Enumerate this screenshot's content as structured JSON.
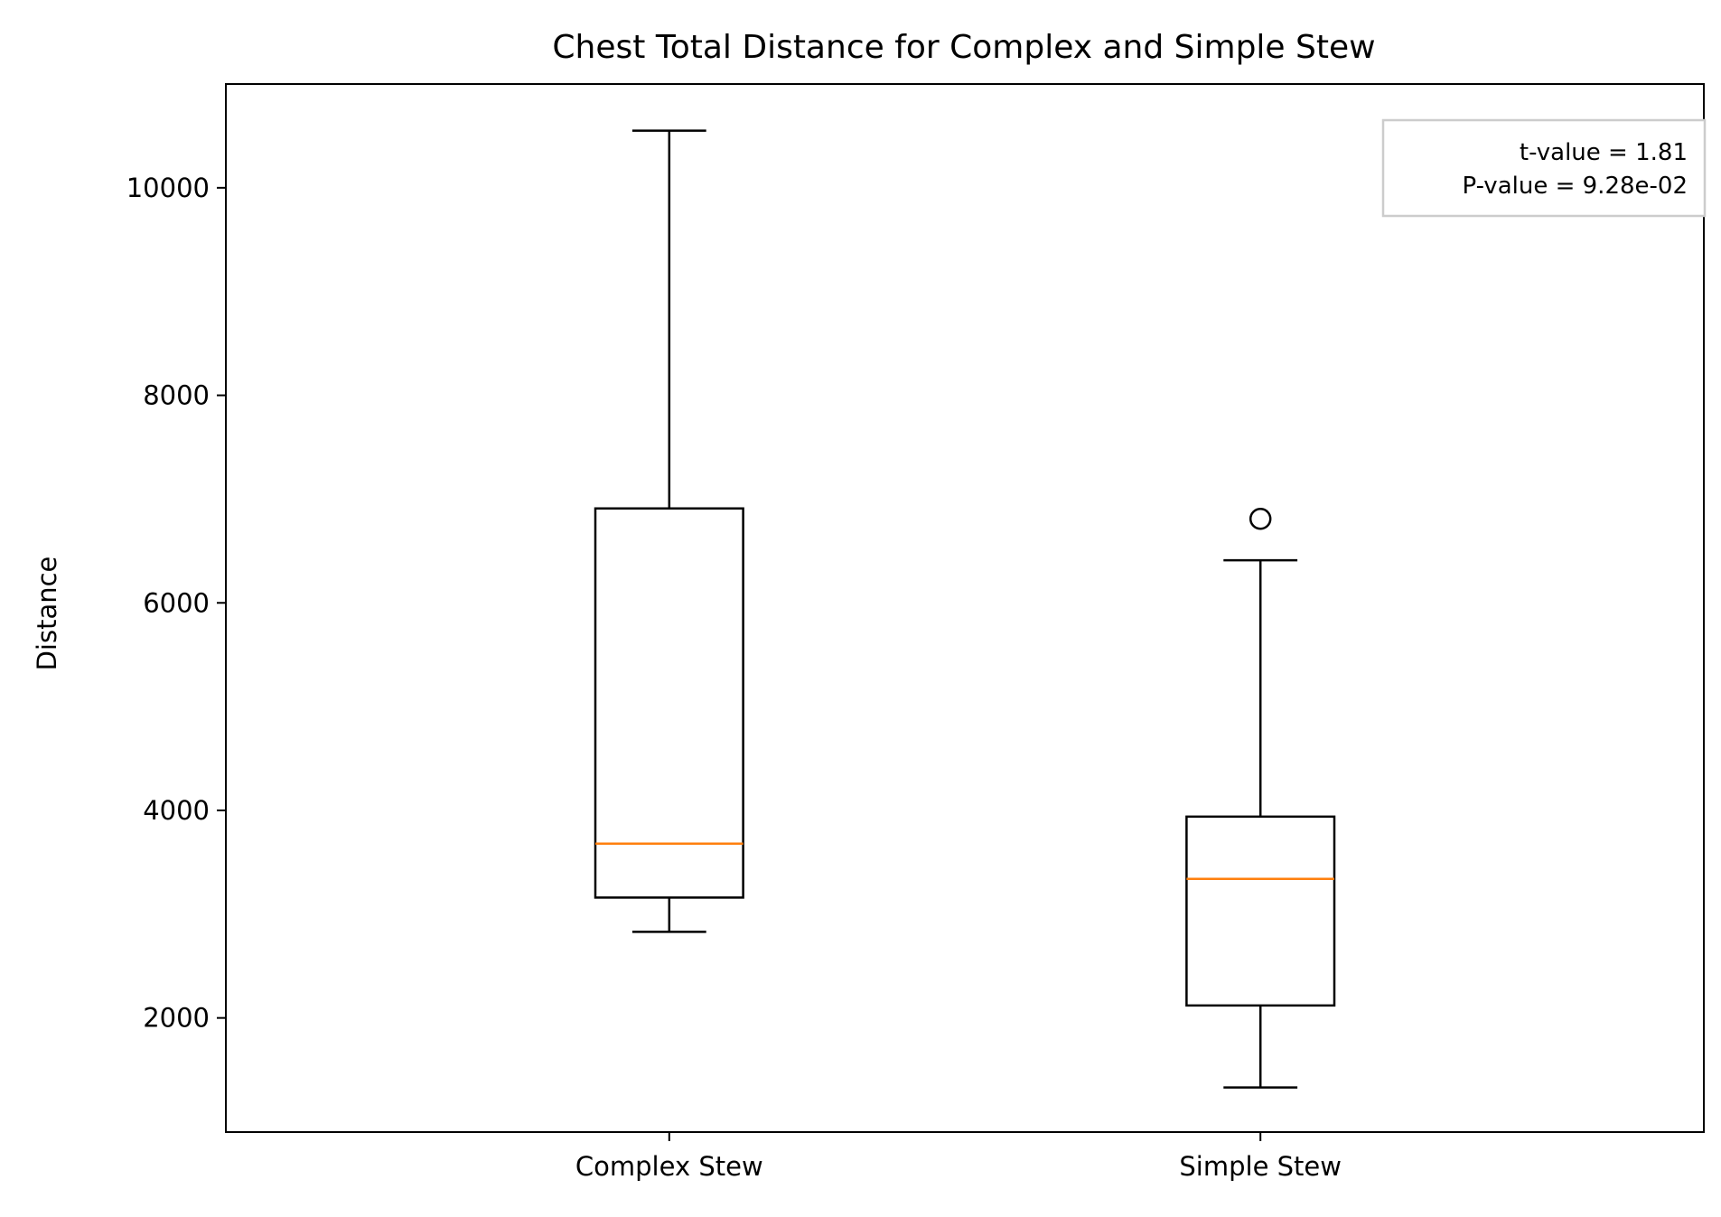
{
  "chart_data": {
    "type": "box",
    "title": "Chest Total Distance for Complex and Simple Stew",
    "xlabel": "",
    "ylabel": "Distance",
    "ylim": [
      900,
      11000
    ],
    "y_ticks": [
      2000,
      4000,
      6000,
      8000,
      10000
    ],
    "y_tick_labels": [
      "2000",
      "4000",
      "6000",
      "8000",
      "10000"
    ],
    "grid": false,
    "categories": [
      "Complex Stew",
      "Simple Stew"
    ],
    "boxes": [
      {
        "category": "Complex Stew",
        "whisker_low": 2830,
        "q1": 3160,
        "median": 3680,
        "q3": 6910,
        "whisker_high": 10550,
        "outliers": []
      },
      {
        "category": "Simple Stew",
        "whisker_low": 1330,
        "q1": 2120,
        "median": 3340,
        "q3": 3940,
        "whisker_high": 6410,
        "outliers": [
          6810
        ]
      }
    ],
    "annotation": {
      "placement": "top-right",
      "lines": [
        "t-value = 1.81",
        "P-value = 9.28e-02"
      ]
    },
    "colors": {
      "box": "#000000",
      "median": "#ff7f0e",
      "annotation_border": "#cccccc"
    }
  }
}
